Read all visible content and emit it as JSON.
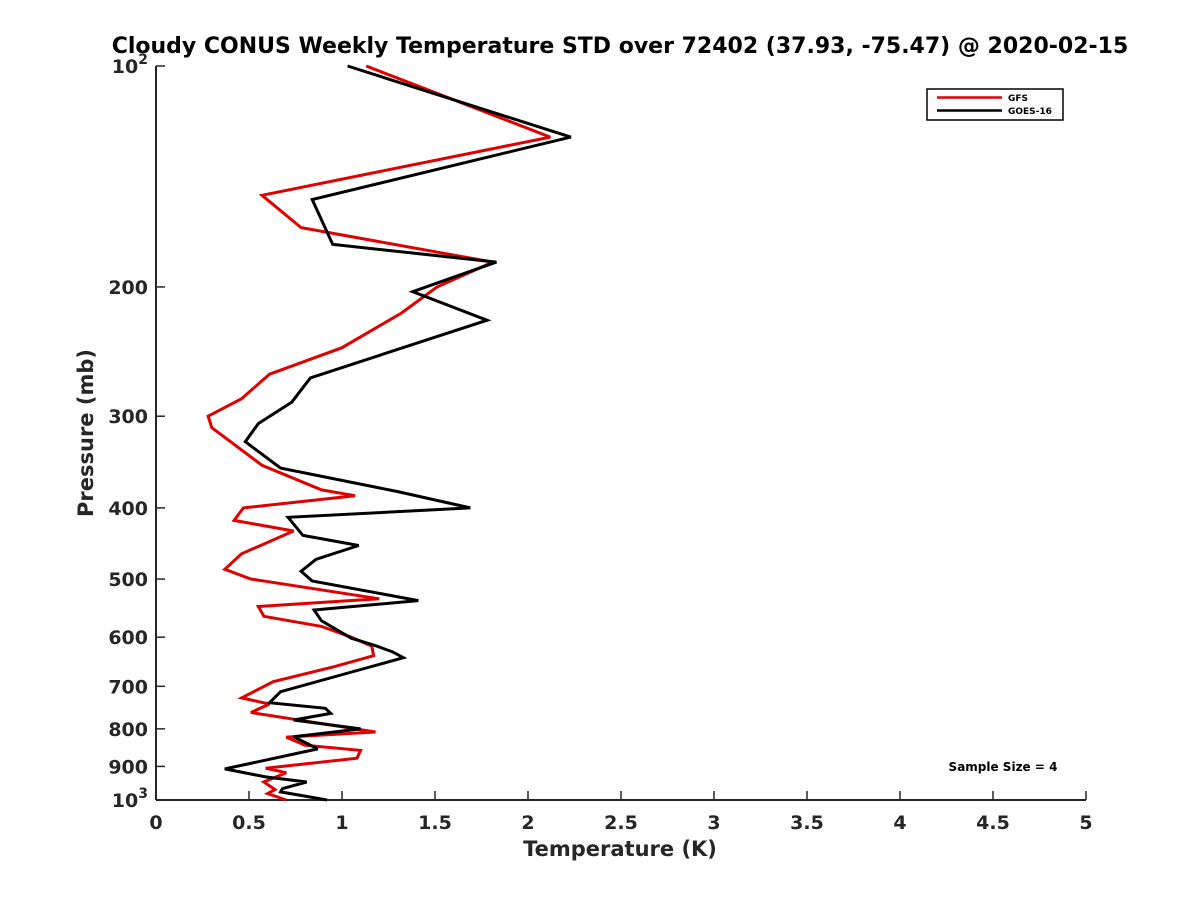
{
  "chart_data": {
    "type": "line",
    "title": "Cloudy CONUS Weekly Temperature STD over 72402 (37.93, -75.47) @ 2020-02-15",
    "xlabel": "Temperature (K)",
    "ylabel": "Pressure (mb)",
    "xlim": [
      0,
      5
    ],
    "ylim": [
      100,
      1000
    ],
    "y_scale": "log",
    "y_reversed": true,
    "x_ticks": [
      0,
      0.5,
      1,
      1.5,
      2,
      2.5,
      3,
      3.5,
      4,
      4.5,
      5
    ],
    "x_tick_labels": [
      "0",
      "0.5",
      "1",
      "1.5",
      "2",
      "2.5",
      "3",
      "3.5",
      "4",
      "4.5",
      "5"
    ],
    "y_ticks": [
      100,
      200,
      300,
      400,
      500,
      600,
      700,
      800,
      900,
      1000
    ],
    "y_tick_labels": [
      {
        "base": "10",
        "exp": "2"
      },
      {
        "base": "200",
        "exp": ""
      },
      {
        "base": "300",
        "exp": ""
      },
      {
        "base": "400",
        "exp": ""
      },
      {
        "base": "500",
        "exp": ""
      },
      {
        "base": "600",
        "exp": ""
      },
      {
        "base": "700",
        "exp": ""
      },
      {
        "base": "800",
        "exp": ""
      },
      {
        "base": "900",
        "exp": ""
      },
      {
        "base": "10",
        "exp": "3"
      }
    ],
    "grid": false,
    "legend_position": "top-right",
    "annotation": "Sample Size = 4",
    "series": [
      {
        "name": "GFS",
        "color": "#e00000",
        "points": [
          [
            1.13,
            100
          ],
          [
            2.12,
            125
          ],
          [
            0.57,
            150
          ],
          [
            0.78,
            166
          ],
          [
            1.81,
            185
          ],
          [
            1.51,
            200
          ],
          [
            1.32,
            217
          ],
          [
            1.0,
            242
          ],
          [
            0.61,
            263
          ],
          [
            0.46,
            284
          ],
          [
            0.28,
            300
          ],
          [
            0.3,
            311
          ],
          [
            0.57,
            350
          ],
          [
            0.89,
            378
          ],
          [
            1.07,
            385
          ],
          [
            0.47,
            400
          ],
          [
            0.42,
            416
          ],
          [
            0.74,
            430
          ],
          [
            0.46,
            462
          ],
          [
            0.37,
            485
          ],
          [
            0.51,
            500
          ],
          [
            1.2,
            532
          ],
          [
            0.55,
            545
          ],
          [
            0.58,
            562
          ],
          [
            0.89,
            580
          ],
          [
            1.05,
            600
          ],
          [
            1.16,
            617
          ],
          [
            1.17,
            636
          ],
          [
            0.96,
            658
          ],
          [
            0.63,
            690
          ],
          [
            0.46,
            726
          ],
          [
            0.61,
            740
          ],
          [
            0.51,
            760
          ],
          [
            1.18,
            808
          ],
          [
            0.7,
            821
          ],
          [
            0.8,
            842
          ],
          [
            1.1,
            856
          ],
          [
            1.08,
            877
          ],
          [
            0.59,
            905
          ],
          [
            0.7,
            918
          ],
          [
            0.58,
            945
          ],
          [
            0.64,
            968
          ],
          [
            0.6,
            980
          ],
          [
            0.7,
            1000
          ]
        ]
      },
      {
        "name": "GOES-16",
        "color": "#000000",
        "points": [
          [
            1.03,
            100
          ],
          [
            2.23,
            125
          ],
          [
            0.84,
            152
          ],
          [
            0.95,
            175
          ],
          [
            1.83,
            185
          ],
          [
            1.38,
            203
          ],
          [
            1.78,
            222
          ],
          [
            0.83,
            266
          ],
          [
            0.73,
            287
          ],
          [
            0.55,
            307
          ],
          [
            0.48,
            325
          ],
          [
            0.67,
            353
          ],
          [
            1.3,
            380
          ],
          [
            1.69,
            400
          ],
          [
            0.71,
            412
          ],
          [
            0.79,
            436
          ],
          [
            1.09,
            450
          ],
          [
            0.86,
            470
          ],
          [
            0.78,
            488
          ],
          [
            0.84,
            503
          ],
          [
            1.41,
            535
          ],
          [
            0.85,
            551
          ],
          [
            0.89,
            570
          ],
          [
            1.05,
            602
          ],
          [
            1.17,
            615
          ],
          [
            1.27,
            628
          ],
          [
            1.33,
            640
          ],
          [
            0.67,
            712
          ],
          [
            0.61,
            737
          ],
          [
            0.91,
            750
          ],
          [
            0.94,
            762
          ],
          [
            0.74,
            778
          ],
          [
            1.1,
            800
          ],
          [
            0.74,
            820
          ],
          [
            0.87,
            852
          ],
          [
            0.37,
            907
          ],
          [
            0.59,
            930
          ],
          [
            0.81,
            945
          ],
          [
            0.68,
            965
          ],
          [
            0.67,
            975
          ],
          [
            0.92,
            1000
          ]
        ]
      }
    ]
  }
}
